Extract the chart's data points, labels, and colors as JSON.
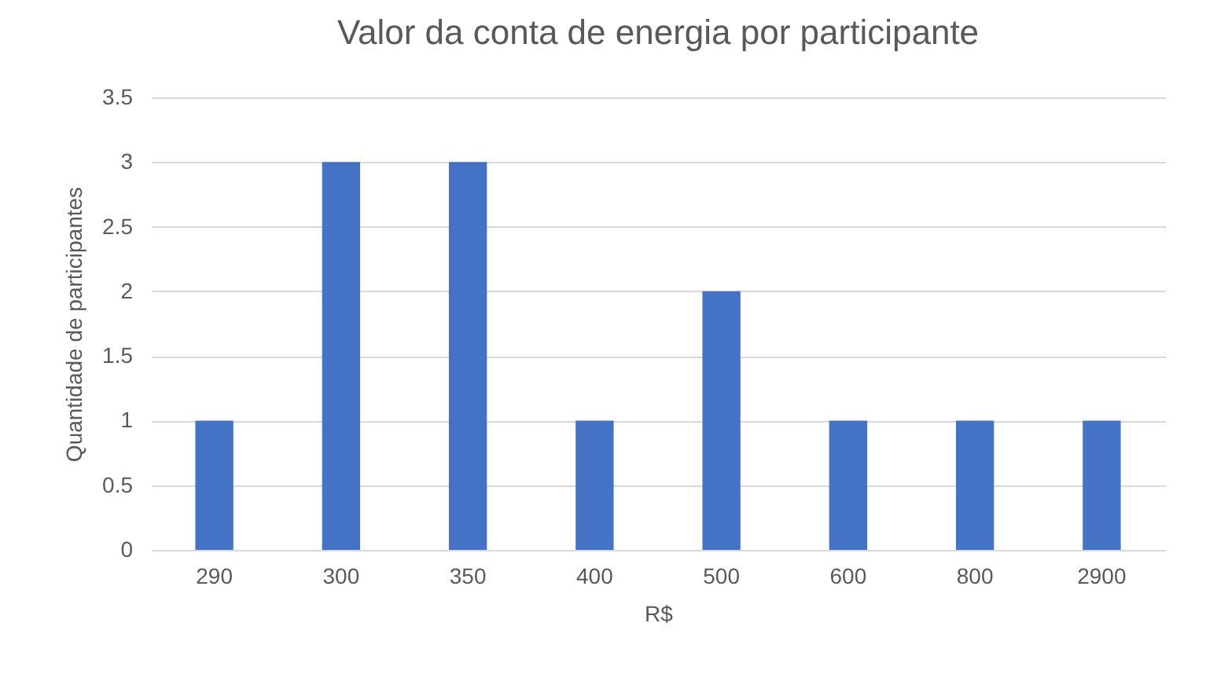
{
  "chart_data": {
    "type": "bar",
    "title": "Valor da conta de energia por participante",
    "xlabel": "R$",
    "ylabel": "Quantidade de participantes",
    "categories": [
      "290",
      "300",
      "350",
      "400",
      "500",
      "600",
      "800",
      "2900"
    ],
    "series": [
      {
        "color": "#4472c4",
        "values": [
          1,
          3,
          3,
          1,
          2,
          1,
          1,
          1
        ]
      }
    ],
    "ylim": [
      0,
      3.5
    ],
    "yticks": [
      0,
      0.5,
      1,
      1.5,
      2,
      2.5,
      3,
      3.5
    ],
    "grid": "y",
    "legend": false
  }
}
